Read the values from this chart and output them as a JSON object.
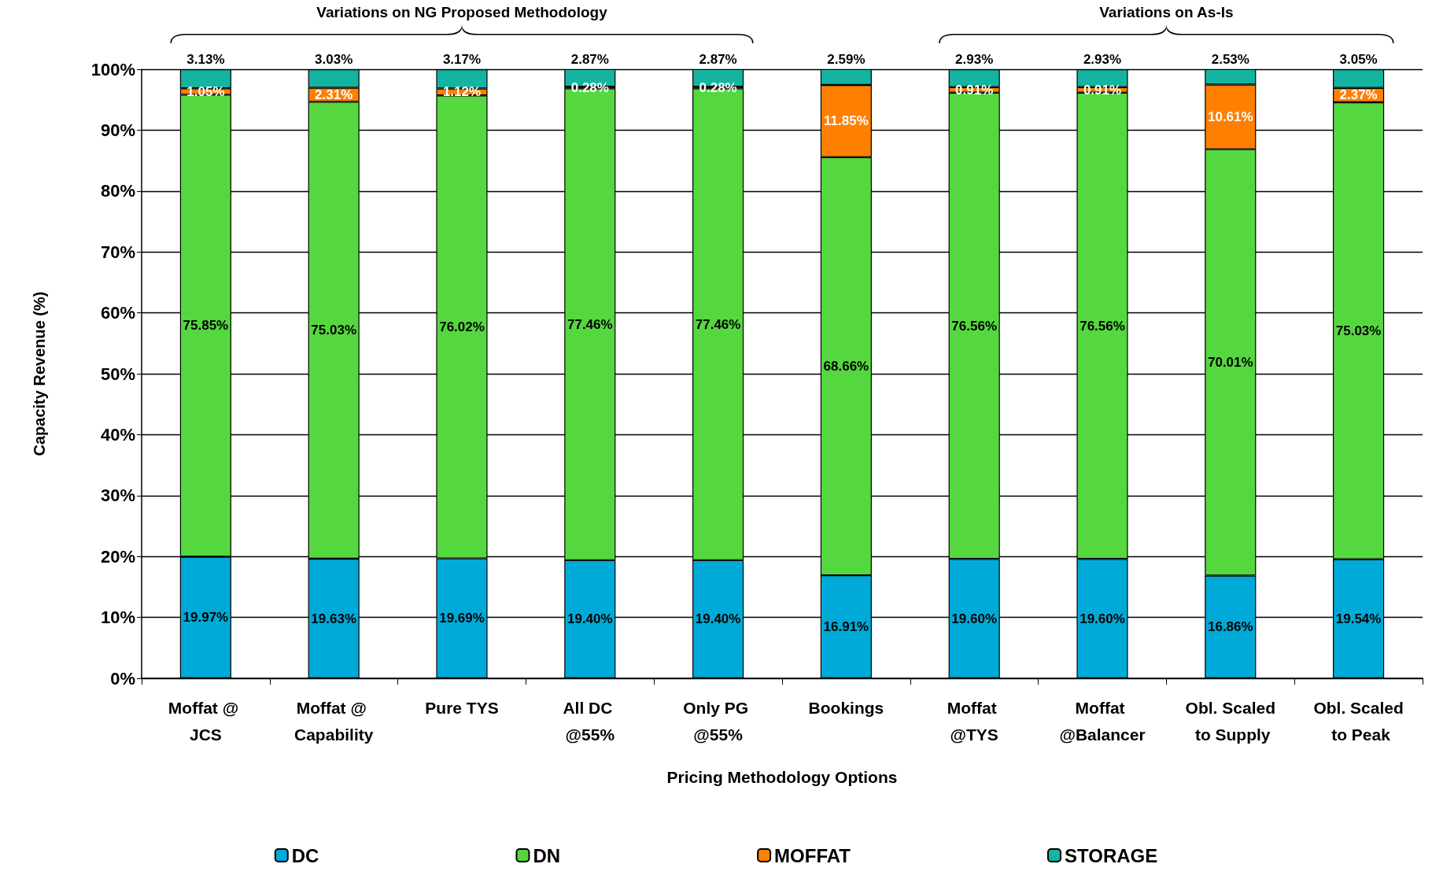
{
  "chart_data": {
    "type": "bar",
    "stacked": true,
    "xlabel": "Pricing Methodology Options",
    "ylabel": "Capacity Revenue (%)",
    "categories": [
      "Moffat @ JCS",
      "Moffat @ Capability",
      "Pure TYS",
      "All DC @55%",
      "Only PG @55%",
      "Bookings",
      "Moffat @TYS",
      "Moffat @Balancer",
      "Obl. Scaled to Supply",
      "Obl. Scaled to Peak"
    ],
    "series": [
      {
        "name": "DC",
        "color": "#00aad8",
        "values": [
          19.97,
          19.63,
          19.69,
          19.4,
          19.4,
          16.91,
          19.6,
          19.6,
          16.86,
          19.54
        ],
        "value_labels": [
          "19.97%",
          "19.63%",
          "19.69%",
          "19.40%",
          "19.40%",
          "16.91%",
          "19.60%",
          "19.60%",
          "16.86%",
          "19.54%"
        ]
      },
      {
        "name": "DN",
        "color": "#55d83f",
        "values": [
          75.85,
          75.03,
          76.02,
          77.46,
          77.46,
          68.66,
          76.56,
          76.56,
          70.01,
          75.03
        ],
        "value_labels": [
          "75.85%",
          "75.03%",
          "76.02%",
          "77.46%",
          "77.46%",
          "68.66%",
          "76.56%",
          "76.56%",
          "70.01%",
          "75.03%"
        ]
      },
      {
        "name": "MOFFAT",
        "color": "#ff7f00",
        "values": [
          1.05,
          2.31,
          1.12,
          0.28,
          0.28,
          11.85,
          0.91,
          0.91,
          10.61,
          2.37
        ],
        "value_labels": [
          "1.05%",
          "2.31%",
          "1.12%",
          "0.28%",
          "0.28%",
          "11.85%",
          "0.91%",
          "0.91%",
          "10.61%",
          "2.37%"
        ]
      },
      {
        "name": "STORAGE",
        "color": "#14b4a0",
        "values": [
          3.13,
          3.03,
          3.17,
          2.87,
          2.87,
          2.59,
          2.93,
          2.93,
          2.53,
          3.05
        ],
        "value_labels": [
          "3.13%",
          "3.03%",
          "3.17%",
          "2.87%",
          "2.87%",
          "2.59%",
          "2.93%",
          "2.93%",
          "2.53%",
          "3.05%"
        ]
      }
    ],
    "ylim": [
      0,
      100
    ],
    "yticks": [
      {
        "value": 0,
        "label": "0%"
      },
      {
        "value": 10,
        "label": "10%"
      },
      {
        "value": 20,
        "label": "20%"
      },
      {
        "value": 30,
        "label": "30%"
      },
      {
        "value": 40,
        "label": "40%"
      },
      {
        "value": 50,
        "label": "50%"
      },
      {
        "value": 60,
        "label": "60%"
      },
      {
        "value": 70,
        "label": "70%"
      },
      {
        "value": 80,
        "label": "80%"
      },
      {
        "value": 90,
        "label": "90%"
      },
      {
        "value": 100,
        "label": "100%"
      }
    ],
    "annotations": [
      "Variations on NG Proposed Methodology",
      "Variations on As-Is"
    ],
    "grid": "y",
    "legend": "bottom"
  }
}
